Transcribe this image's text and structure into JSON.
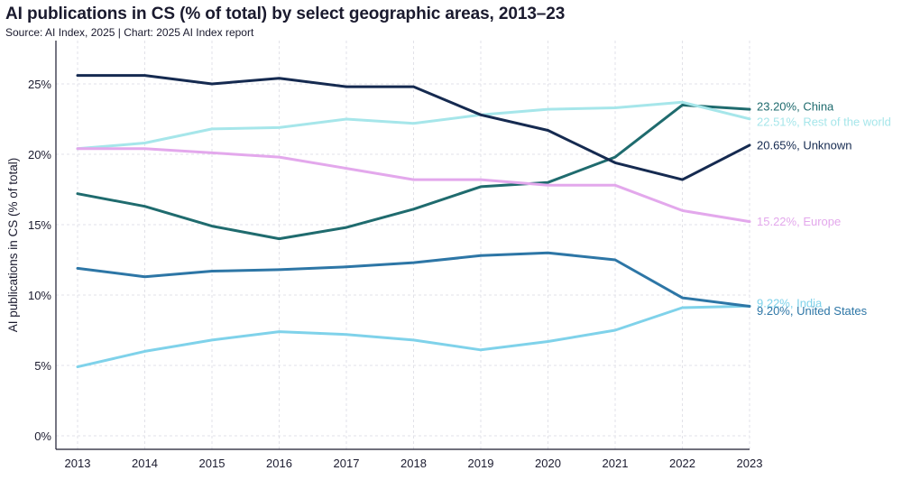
{
  "header": {
    "title": "AI publications in CS (% of total) by select geographic areas, 2013–23",
    "subtitle": "Source: AI Index, 2025 | Chart: 2025 AI Index report"
  },
  "chart_data": {
    "type": "line",
    "x": [
      "2013",
      "2014",
      "2015",
      "2016",
      "2017",
      "2018",
      "2019",
      "2020",
      "2021",
      "2022",
      "2023"
    ],
    "ylabel": "AI publications in CS (% of total)",
    "xlabel": "",
    "ylim": [
      0,
      27
    ],
    "yticks": [
      0,
      5,
      10,
      15,
      20,
      25
    ],
    "ytick_labels": [
      "0%",
      "5%",
      "10%",
      "15%",
      "20%",
      "25%"
    ],
    "grid": true,
    "series": [
      {
        "name": "China",
        "color": "#1f6b6e",
        "end_label": "23.20%, China",
        "values": [
          17.2,
          16.3,
          14.9,
          14.0,
          14.8,
          16.1,
          17.7,
          18.0,
          19.8,
          23.5,
          23.2
        ]
      },
      {
        "name": "Rest of the world",
        "color": "#a6e6ea",
        "end_label": "22.51%, Rest of the world",
        "values": [
          20.4,
          20.8,
          21.8,
          21.9,
          22.5,
          22.2,
          22.8,
          23.2,
          23.3,
          23.7,
          22.51
        ]
      },
      {
        "name": "Unknown",
        "color": "#152a50",
        "end_label": "20.65%, Unknown",
        "values": [
          25.6,
          25.6,
          25.0,
          25.4,
          24.8,
          24.8,
          22.8,
          21.7,
          19.4,
          18.2,
          20.65
        ]
      },
      {
        "name": "Europe",
        "color": "#e3a8ec",
        "end_label": "15.22%, Europe",
        "values": [
          20.4,
          20.4,
          20.1,
          19.8,
          19.0,
          18.2,
          18.2,
          17.8,
          17.8,
          16.0,
          15.22
        ]
      },
      {
        "name": "India",
        "color": "#7fd2ea",
        "end_label": "9.22%, India",
        "values": [
          4.9,
          6.0,
          6.8,
          7.4,
          7.2,
          6.8,
          6.1,
          6.7,
          7.5,
          9.1,
          9.22
        ]
      },
      {
        "name": "United States",
        "color": "#2d76a6",
        "end_label": "9.20%, United States",
        "values": [
          11.9,
          11.3,
          11.7,
          11.8,
          12.0,
          12.3,
          12.8,
          13.0,
          12.5,
          9.8,
          9.2
        ]
      }
    ]
  }
}
